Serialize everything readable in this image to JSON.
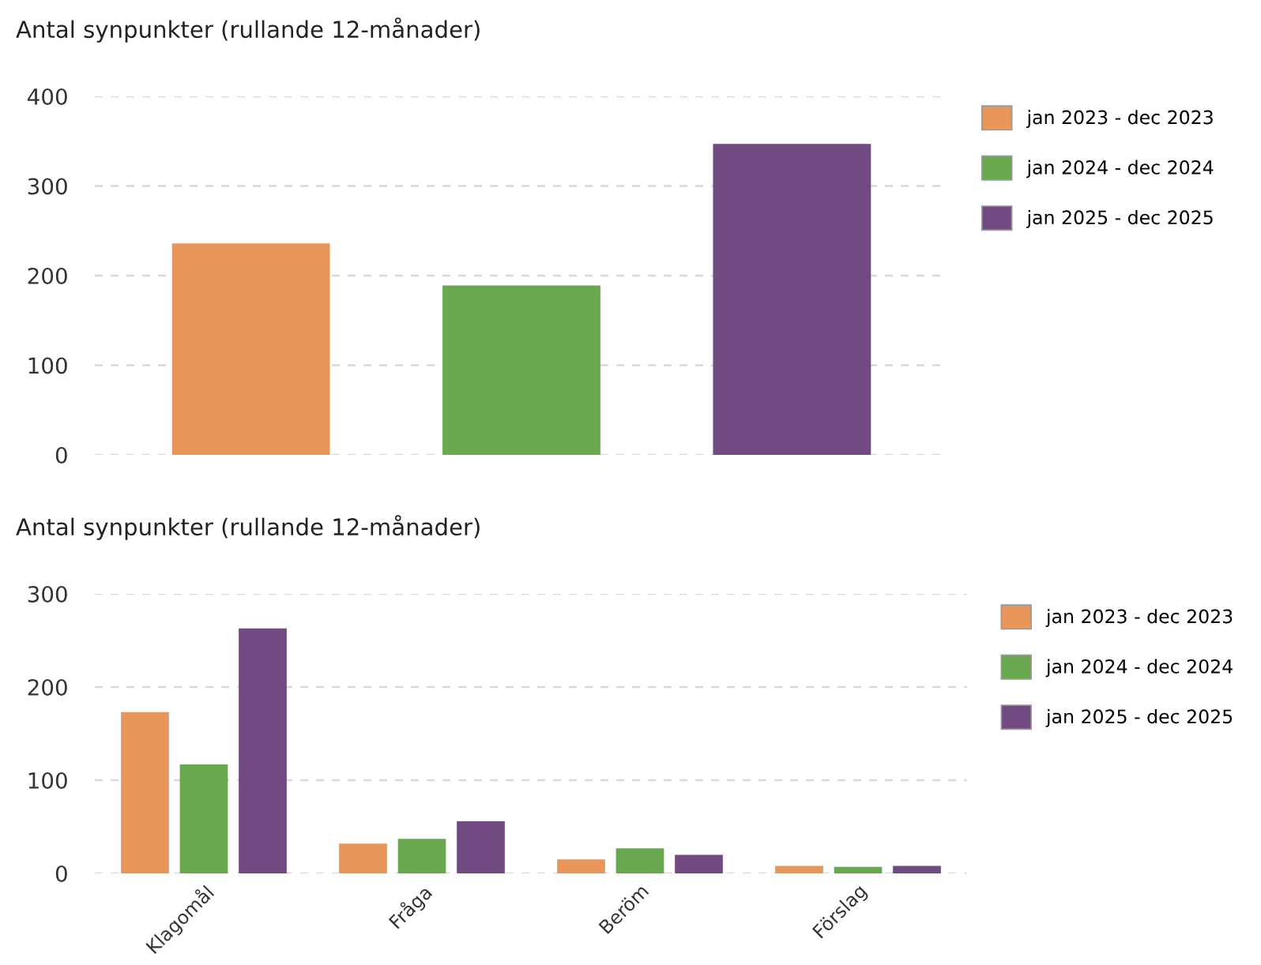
{
  "chart_data": [
    {
      "type": "bar",
      "title": "Antal synpunkter (rullande 12-månader)",
      "categories": [
        null
      ],
      "ylim": [
        0,
        400
      ],
      "yticks": [
        0,
        100,
        200,
        300,
        400
      ],
      "grid": "y",
      "legend": "right",
      "series": [
        {
          "name": "jan 2023 - dec 2023",
          "color": "#e8965a",
          "values": [
            236
          ]
        },
        {
          "name": "jan 2024 - dec 2024",
          "color": "#6aa84f",
          "values": [
            189
          ]
        },
        {
          "name": "jan 2025 - dec 2025",
          "color": "#714a82",
          "values": [
            347
          ]
        }
      ]
    },
    {
      "type": "bar",
      "title": "Antal synpunkter (rullande 12-månader)",
      "categories": [
        "Klagomål",
        "Fråga",
        "Beröm",
        "Förslag"
      ],
      "ylim": [
        0,
        300
      ],
      "yticks": [
        0,
        100,
        200,
        300
      ],
      "grid": "y",
      "legend": "right",
      "series": [
        {
          "name": "jan 2023 - dec 2023",
          "color": "#e8965a",
          "values": [
            173,
            32,
            15,
            8
          ]
        },
        {
          "name": "jan 2024 - dec 2024",
          "color": "#6aa84f",
          "values": [
            117,
            37,
            27,
            7
          ]
        },
        {
          "name": "jan 2025 - dec 2025",
          "color": "#714a82",
          "values": [
            263,
            56,
            20,
            8
          ]
        }
      ]
    }
  ]
}
